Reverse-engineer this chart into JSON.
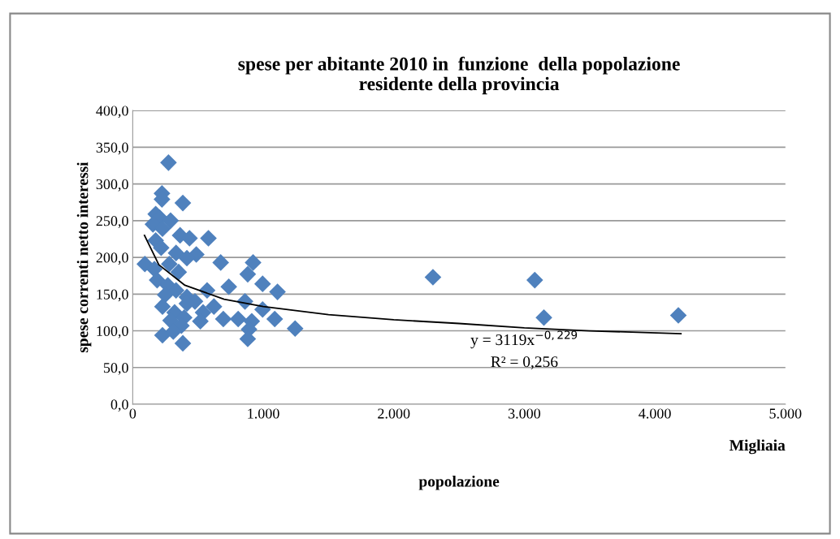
{
  "chart_data": {
    "type": "scatter",
    "title": "spese per abitante 2010 in  funzione  della popolazione\nresidente della provincia",
    "xlabel": "popolazione",
    "ylabel": "spese correnti netto interessi",
    "annotations": [
      "Migliaia",
      "y = 3119x$^{−0,229}$",
      "R² = 0,256"
    ],
    "xlim": [
      0,
      5000
    ],
    "xticks": [
      0,
      {
        "value": 1000,
        "label": "1.000"
      },
      {
        "value": 2000,
        "label": "2.000"
      },
      {
        "value": 3000,
        "label": "3.000"
      },
      {
        "value": 4000,
        "label": "4.000"
      },
      {
        "value": 5000,
        "label": "5.000"
      }
    ],
    "ylim": [
      0,
      400
    ],
    "yticks": [
      {
        "value": 0,
        "label": "0,0"
      },
      {
        "value": 50,
        "label": "50,0"
      },
      {
        "value": 100,
        "label": "100,0"
      },
      {
        "value": 150,
        "label": "150,0"
      },
      {
        "value": 200,
        "label": "200,0"
      },
      {
        "value": 250,
        "label": "250,0"
      },
      {
        "value": 300,
        "label": "300,0"
      },
      {
        "value": 350,
        "label": "350,0"
      },
      {
        "value": 400,
        "label": "400,0"
      }
    ],
    "grid": "y",
    "marker": "diamond",
    "series": [
      {
        "color": "#4f81bd",
        "x": [
          274,
          224,
          224,
          384,
          176,
          207,
          290,
          155,
          228,
          363,
          435,
          580,
          176,
          218,
          487,
          332,
          415,
          93,
          674,
          922,
          280,
          166,
          881,
          352,
          187,
          269,
          995,
          736,
          1109,
          332,
          570,
          249,
          415,
          477,
          860,
          622,
          228,
          995,
          321,
          539,
          394,
          694,
          808,
          1088,
          290,
          518,
          912,
          373,
          891,
          1244,
          228,
          311,
          881,
          384,
          415,
          2300,
          3080,
          3150,
          4180
        ],
        "values": [
          329,
          287,
          279,
          274,
          259,
          254,
          250,
          245,
          239,
          230,
          226,
          226,
          223,
          213,
          204,
          206,
          199,
          191,
          193,
          193,
          191,
          184,
          177,
          180,
          169,
          162,
          164,
          160,
          153,
          155,
          155,
          149,
          146,
          140,
          140,
          133,
          133,
          129,
          125,
          125,
          118,
          116,
          116,
          116,
          114,
          113,
          113,
          107,
          102,
          103,
          94,
          99,
          89,
          83,
          137,
          173,
          169,
          118,
          121
        ]
      },
      {
        "type": "line",
        "color": "#000000",
        "marker": "none",
        "x": [
          90,
          200,
          400,
          700,
          1000,
          1500,
          2000,
          2500,
          3000,
          3500,
          4200
        ],
        "values": [
          230,
          190,
          162,
          143,
          133,
          122,
          115,
          110,
          104,
          100,
          96
        ]
      }
    ]
  }
}
